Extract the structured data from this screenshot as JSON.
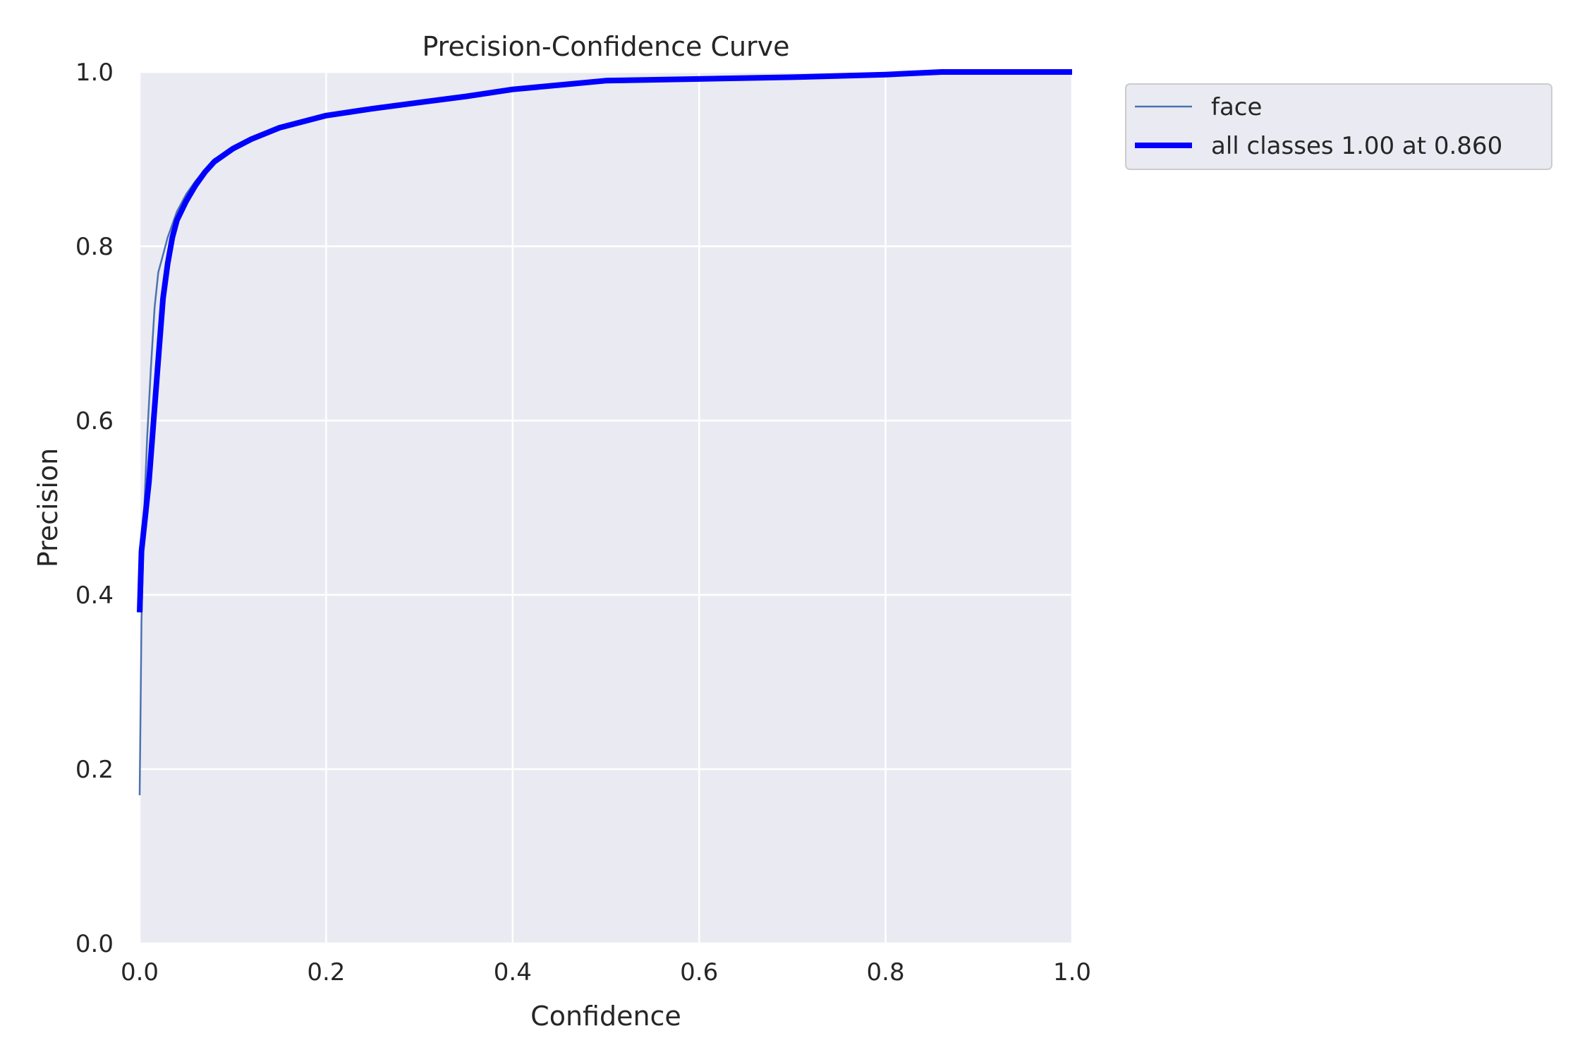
{
  "chart_data": {
    "type": "line",
    "title": "Precision-Confidence Curve",
    "xlabel": "Confidence",
    "ylabel": "Precision",
    "xlim": [
      0,
      1
    ],
    "ylim": [
      0,
      1
    ],
    "xticks": [
      0.0,
      0.2,
      0.4,
      0.6,
      0.8,
      1.0
    ],
    "yticks": [
      0.0,
      0.2,
      0.4,
      0.6,
      0.8,
      1.0
    ],
    "xtick_labels": [
      "0.0",
      "0.2",
      "0.4",
      "0.6",
      "0.8",
      "1.0"
    ],
    "ytick_labels": [
      "0.0",
      "0.2",
      "0.4",
      "0.6",
      "0.8",
      "1.0"
    ],
    "grid": true,
    "legend_position": "outside-top-right",
    "background_color": "#EAEAF2",
    "series": [
      {
        "name": "face",
        "color": "#4C72B0",
        "style": "thin",
        "x": [
          0.0,
          0.002,
          0.005,
          0.008,
          0.012,
          0.016,
          0.02,
          0.025,
          0.03,
          0.035,
          0.04,
          0.045,
          0.05,
          0.06,
          0.07,
          0.08,
          0.1,
          0.12,
          0.15,
          0.2,
          0.25,
          0.3,
          0.35,
          0.4,
          0.45,
          0.5,
          0.6,
          0.7,
          0.8,
          0.86,
          0.9,
          1.0
        ],
        "values": [
          0.17,
          0.37,
          0.5,
          0.58,
          0.66,
          0.73,
          0.77,
          0.79,
          0.81,
          0.825,
          0.84,
          0.85,
          0.86,
          0.875,
          0.888,
          0.9,
          0.912,
          0.923,
          0.936,
          0.95,
          0.958,
          0.965,
          0.972,
          0.98,
          0.985,
          0.99,
          0.992,
          0.994,
          0.997,
          1.0,
          1.0,
          1.0
        ]
      },
      {
        "name": "all classes 1.00 at 0.860",
        "color": "#0000FF",
        "style": "thick",
        "x": [
          0.0,
          0.002,
          0.005,
          0.01,
          0.015,
          0.02,
          0.025,
          0.03,
          0.035,
          0.04,
          0.05,
          0.06,
          0.07,
          0.08,
          0.1,
          0.12,
          0.15,
          0.2,
          0.25,
          0.3,
          0.35,
          0.4,
          0.45,
          0.5,
          0.6,
          0.7,
          0.8,
          0.86,
          0.9,
          1.0
        ],
        "values": [
          0.38,
          0.45,
          0.48,
          0.53,
          0.6,
          0.67,
          0.74,
          0.78,
          0.81,
          0.83,
          0.852,
          0.87,
          0.885,
          0.897,
          0.912,
          0.923,
          0.936,
          0.95,
          0.958,
          0.965,
          0.972,
          0.98,
          0.985,
          0.99,
          0.992,
          0.994,
          0.997,
          1.0,
          1.0,
          1.0
        ]
      }
    ]
  }
}
